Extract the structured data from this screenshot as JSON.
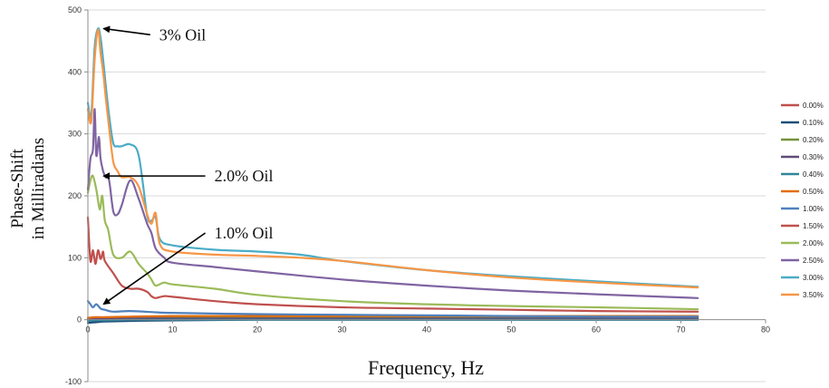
{
  "chart_data": {
    "type": "line",
    "xlabel": "Frequency, Hz",
    "ylabel_line1": "Phase-Shift",
    "ylabel_line2": "in Milliradians",
    "xlim": [
      0,
      80
    ],
    "ylim": [
      -100,
      500
    ],
    "xticks": [
      0,
      10,
      20,
      30,
      40,
      50,
      60,
      70,
      80
    ],
    "yticks": [
      -100,
      0,
      100,
      200,
      300,
      400,
      500
    ],
    "grid": "horizontal",
    "legend_position": "right",
    "annotations": [
      {
        "text": "3% Oil",
        "target_x": 1.2,
        "target_y": 470,
        "text_x": 8,
        "text_y": 460
      },
      {
        "text": "2.0% Oil",
        "target_x": 1.2,
        "target_y": 232,
        "text_x": 14.5,
        "text_y": 232
      },
      {
        "text": "1.0% Oil",
        "target_x": 1.2,
        "target_y": 25,
        "text_x": 14.5,
        "text_y": 140
      }
    ],
    "series": [
      {
        "name": "0.00%",
        "color": "#c0504d",
        "x": [
          0,
          1,
          2,
          5,
          10,
          20,
          30,
          40,
          50,
          60,
          72
        ],
        "y": [
          2,
          3,
          3,
          4,
          5,
          5,
          5,
          5,
          5,
          5,
          5
        ]
      },
      {
        "name": "0.10%",
        "color": "#1f4e79",
        "x": [
          0,
          1,
          2,
          5,
          10,
          20,
          30,
          40,
          50,
          60,
          72
        ],
        "y": [
          -5,
          -4,
          -3,
          -2,
          -1,
          0,
          0,
          0,
          0,
          0,
          0
        ]
      },
      {
        "name": "0.20%",
        "color": "#76923c",
        "x": [
          0,
          1,
          2,
          5,
          10,
          20,
          30,
          40,
          50,
          60,
          72
        ],
        "y": [
          1,
          2,
          2,
          2,
          3,
          3,
          3,
          3,
          3,
          3,
          3
        ]
      },
      {
        "name": "0.30%",
        "color": "#604a7b",
        "x": [
          0,
          1,
          2,
          5,
          10,
          20,
          30,
          40,
          50,
          60,
          72
        ],
        "y": [
          0,
          1,
          1,
          2,
          2,
          2,
          2,
          2,
          2,
          2,
          2
        ]
      },
      {
        "name": "0.40%",
        "color": "#31859c",
        "x": [
          0,
          1,
          2,
          5,
          10,
          20,
          30,
          40,
          50,
          60,
          72
        ],
        "y": [
          -2,
          -1,
          -1,
          0,
          0,
          0,
          0,
          0,
          0,
          0,
          0
        ]
      },
      {
        "name": "0.50%",
        "color": "#e46c0a",
        "x": [
          0,
          1,
          2,
          5,
          10,
          20,
          30,
          40,
          50,
          60,
          72
        ],
        "y": [
          3,
          4,
          4,
          5,
          6,
          6,
          6,
          6,
          6,
          6,
          6
        ]
      },
      {
        "name": "1.00%",
        "color": "#4f81bd",
        "x": [
          0,
          0.3,
          0.6,
          1.0,
          1.5,
          2,
          3,
          5,
          8,
          10,
          20,
          30,
          40,
          50,
          60,
          72
        ],
        "y": [
          30,
          25,
          20,
          25,
          18,
          16,
          13,
          14,
          12,
          11,
          9,
          8,
          7,
          6,
          5,
          5
        ]
      },
      {
        "name": "1.50%",
        "color": "#c0504d",
        "x": [
          0,
          0.3,
          0.6,
          0.9,
          1.2,
          1.5,
          1.8,
          2,
          3,
          4,
          5,
          6,
          7,
          7.5,
          8,
          9,
          10,
          15,
          20,
          30,
          40,
          50,
          60,
          72
        ],
        "y": [
          165,
          95,
          112,
          90,
          112,
          98,
          110,
          95,
          75,
          55,
          50,
          50,
          45,
          38,
          35,
          38,
          37,
          30,
          25,
          20,
          18,
          16,
          14,
          13
        ]
      },
      {
        "name": "2.00%",
        "color": "#9bbb59",
        "x": [
          0,
          0.3,
          0.6,
          1.0,
          1.4,
          1.7,
          2.0,
          2.4,
          3,
          4,
          5,
          6,
          7,
          7.5,
          8,
          9,
          10,
          15,
          20,
          30,
          40,
          50,
          60,
          72
        ],
        "y": [
          205,
          225,
          232,
          210,
          178,
          200,
          160,
          145,
          105,
          100,
          110,
          90,
          75,
          65,
          55,
          60,
          57,
          50,
          40,
          30,
          25,
          22,
          20,
          17
        ]
      },
      {
        "name": "2.50%",
        "color": "#8064a2",
        "x": [
          0,
          0.3,
          0.6,
          0.8,
          1.0,
          1.3,
          1.5,
          1.8,
          2.1,
          2.5,
          3,
          3.5,
          4,
          5,
          6,
          7,
          7.5,
          8,
          9,
          10,
          15,
          20,
          30,
          40,
          50,
          60,
          72
        ],
        "y": [
          210,
          260,
          275,
          340,
          265,
          295,
          260,
          240,
          230,
          225,
          175,
          170,
          185,
          225,
          195,
          155,
          140,
          115,
          100,
          92,
          85,
          78,
          65,
          55,
          47,
          41,
          35
        ]
      },
      {
        "name": "3.00%",
        "color": "#4bacc6",
        "x": [
          0,
          0.4,
          0.8,
          1.2,
          1.5,
          1.8,
          2.1,
          2.5,
          3,
          3.5,
          4,
          5,
          6,
          7,
          7.5,
          8,
          8.5,
          10,
          15,
          20,
          25,
          30,
          40,
          50,
          60,
          72
        ],
        "y": [
          350,
          330,
          440,
          470,
          455,
          420,
          380,
          330,
          285,
          280,
          280,
          283,
          265,
          168,
          160,
          165,
          130,
          120,
          113,
          110,
          105,
          95,
          80,
          70,
          62,
          53
        ]
      },
      {
        "name": "3.50%",
        "color": "#f79646",
        "x": [
          0,
          0.4,
          0.8,
          1.2,
          1.5,
          1.8,
          2.1,
          2.5,
          3,
          3.5,
          4,
          5,
          6,
          7,
          7.5,
          8,
          8.5,
          10,
          15,
          20,
          25,
          30,
          40,
          50,
          60,
          72
        ],
        "y": [
          340,
          320,
          420,
          468,
          430,
          400,
          360,
          310,
          255,
          240,
          230,
          230,
          215,
          170,
          155,
          172,
          122,
          110,
          105,
          103,
          100,
          95,
          80,
          68,
          60,
          52
        ]
      }
    ]
  }
}
